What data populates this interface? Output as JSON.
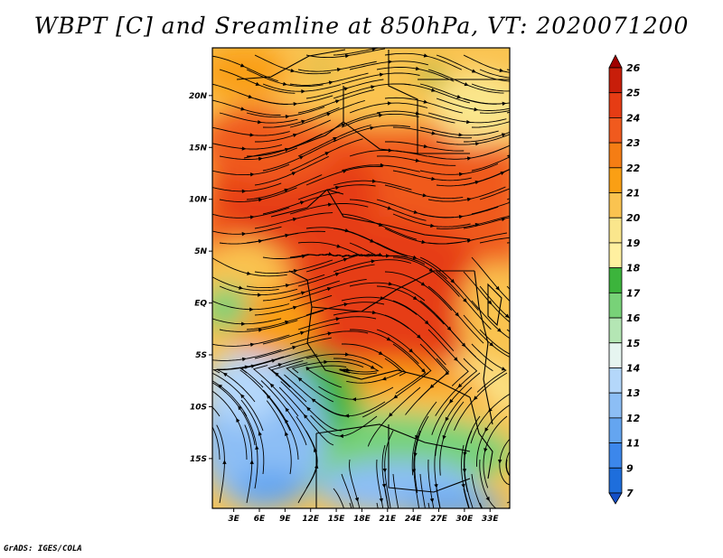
{
  "title": "WBPT [C] and Sreamline at 850hPa, VT: 2020071200",
  "credit": "GrADS: IGES/COLA",
  "map": {
    "lat_labels": [
      "20N",
      "15N",
      "10N",
      "5N",
      "EQ",
      "5S",
      "10S",
      "15S"
    ],
    "lat_values": [
      20,
      15,
      10,
      5,
      0,
      -5,
      -10,
      -15
    ],
    "lon_labels": [
      "3E",
      "6E",
      "9E",
      "12E",
      "15E",
      "18E",
      "21E",
      "24E",
      "27E",
      "30E",
      "33E"
    ],
    "lon_values": [
      3,
      6,
      9,
      12,
      15,
      18,
      21,
      24,
      27,
      30,
      33
    ],
    "lat_range": [
      -19.8,
      24.6
    ],
    "lon_range": [
      0.5,
      35.3
    ],
    "field": "wet-bulb potential temperature with streamlines"
  },
  "colorbar": {
    "labels": [
      "26",
      "25",
      "24",
      "23",
      "22",
      "21",
      "20",
      "19",
      "18",
      "17",
      "16",
      "15",
      "14",
      "13",
      "12",
      "11",
      "9",
      "7"
    ],
    "colors": [
      "#a00000",
      "#c81e0a",
      "#e63c14",
      "#f05a1e",
      "#f57d14",
      "#fa9f14",
      "#fac350",
      "#fae68c",
      "#fff0a0",
      "#3cb43c",
      "#78d278",
      "#b4e6b4",
      "#e6f5f0",
      "#b4d7fa",
      "#8cbef5",
      "#64a5f0",
      "#3c87eb",
      "#1e6edc",
      "#1450c8"
    ]
  }
}
